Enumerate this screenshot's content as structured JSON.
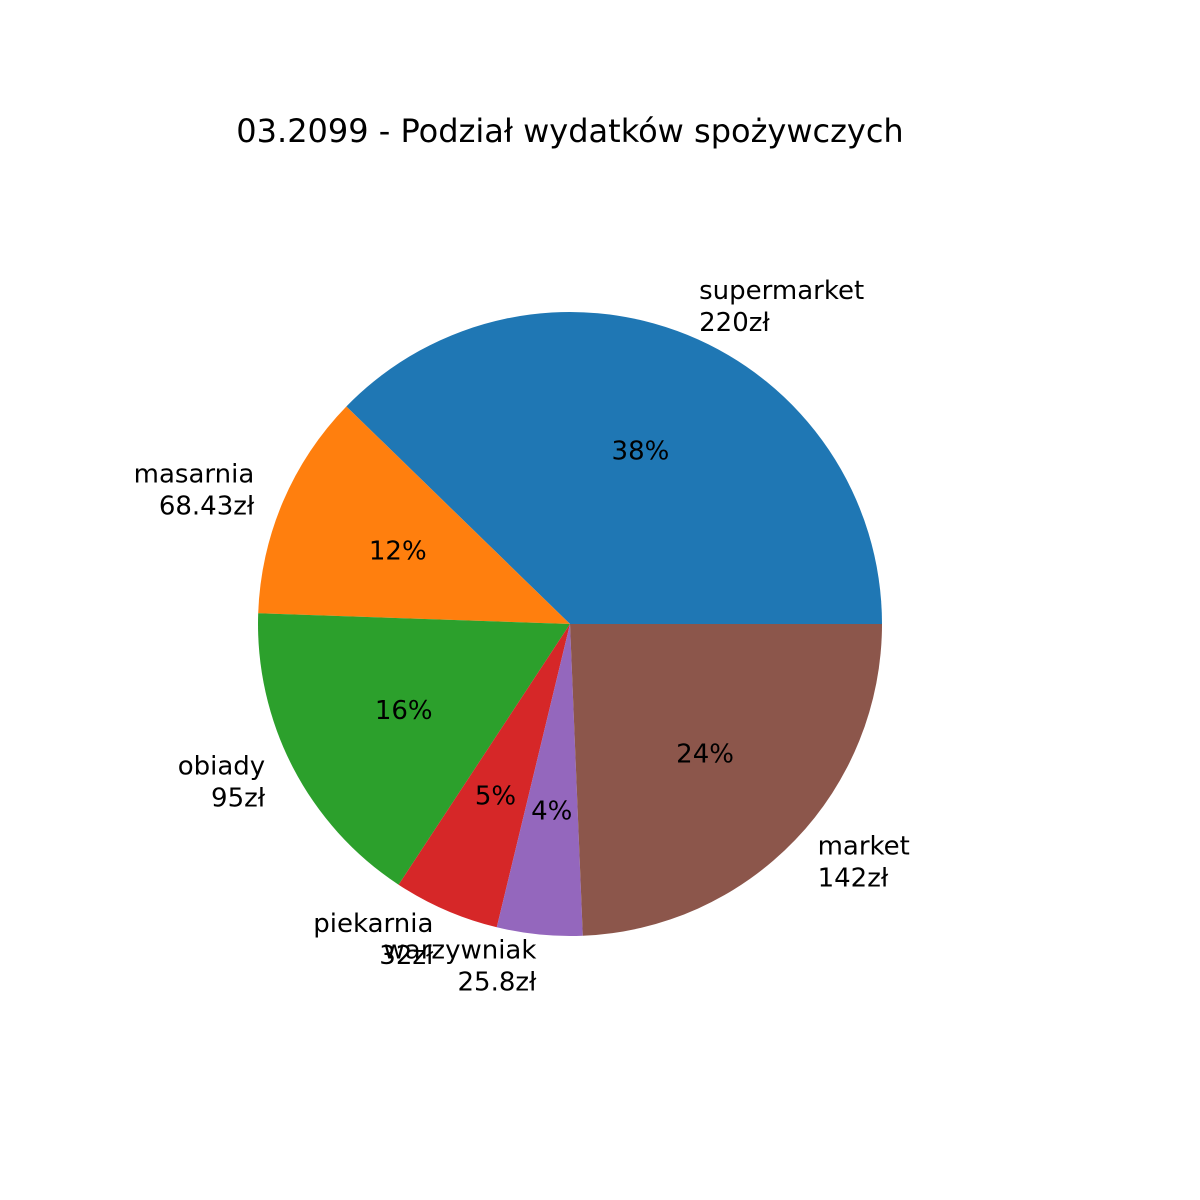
{
  "chart_data": {
    "type": "pie",
    "title": "03.2099 - Podział wydatków spożywczych",
    "start_angle": 0,
    "direction": "counterclockwise",
    "slices": [
      {
        "label": "supermarket",
        "value_label": "220zł",
        "value": 220,
        "pct_label": "38%",
        "color": "#1f77b4"
      },
      {
        "label": "masarnia",
        "value_label": "68.43zł",
        "value": 68.43,
        "pct_label": "12%",
        "color": "#ff7f0e"
      },
      {
        "label": "obiady",
        "value_label": "95zł",
        "value": 95,
        "pct_label": "16%",
        "color": "#2ca02c"
      },
      {
        "label": "piekarnia",
        "value_label": "32zł",
        "value": 32,
        "pct_label": "5%",
        "color": "#d62728"
      },
      {
        "label": "warzywniak",
        "value_label": "25.8zł",
        "value": 25.8,
        "pct_label": "4%",
        "color": "#9467bd"
      },
      {
        "label": "market",
        "value_label": "142zł",
        "value": 142,
        "pct_label": "24%",
        "color": "#8c564b"
      }
    ]
  }
}
